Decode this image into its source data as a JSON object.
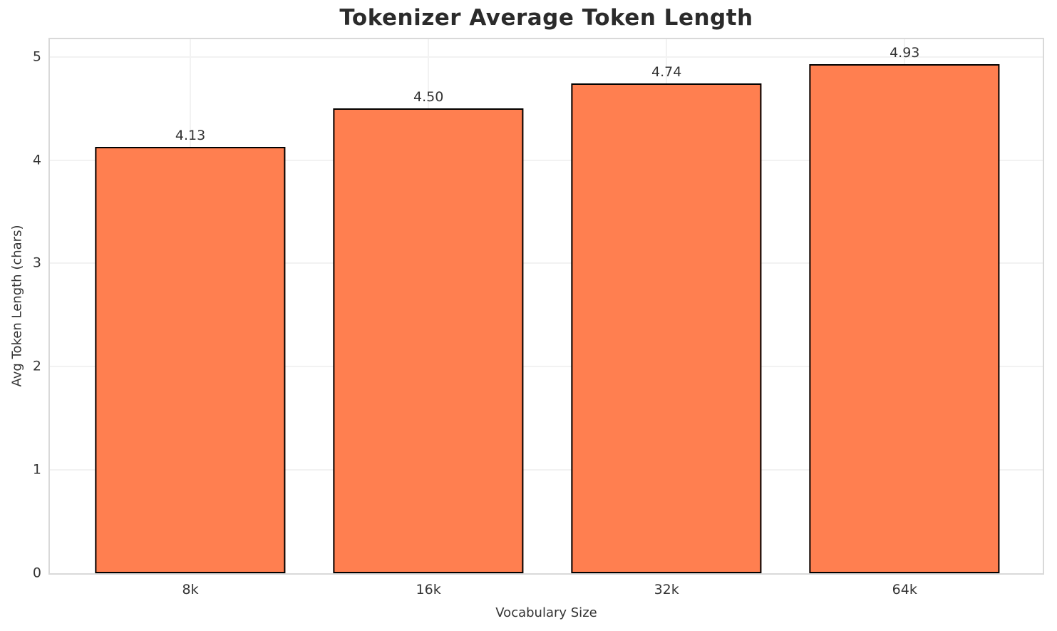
{
  "chart_data": {
    "type": "bar",
    "title": "Tokenizer Average Token Length",
    "xlabel": "Vocabulary Size",
    "ylabel": "Avg Token Length (chars)",
    "categories": [
      "8k",
      "16k",
      "32k",
      "64k"
    ],
    "values": [
      4.13,
      4.5,
      4.74,
      4.93
    ],
    "value_labels": [
      "4.13",
      "4.50",
      "4.74",
      "4.93"
    ],
    "yticks": [
      0,
      1,
      2,
      3,
      4,
      5
    ],
    "ytick_labels": [
      "0",
      "1",
      "2",
      "3",
      "4",
      "5"
    ],
    "ylim": [
      0,
      5.17
    ],
    "xlim": [
      -0.59,
      3.58
    ],
    "bar_width": 0.8,
    "grid": true,
    "legend": "none",
    "colors": {
      "bar": "#ff7f50",
      "bar_edge": "#000000",
      "grid": "#f2f2f2",
      "spine": "#d9d9d9",
      "text": "#333333",
      "title": "#2b2b2b",
      "background": "#ffffff"
    }
  }
}
